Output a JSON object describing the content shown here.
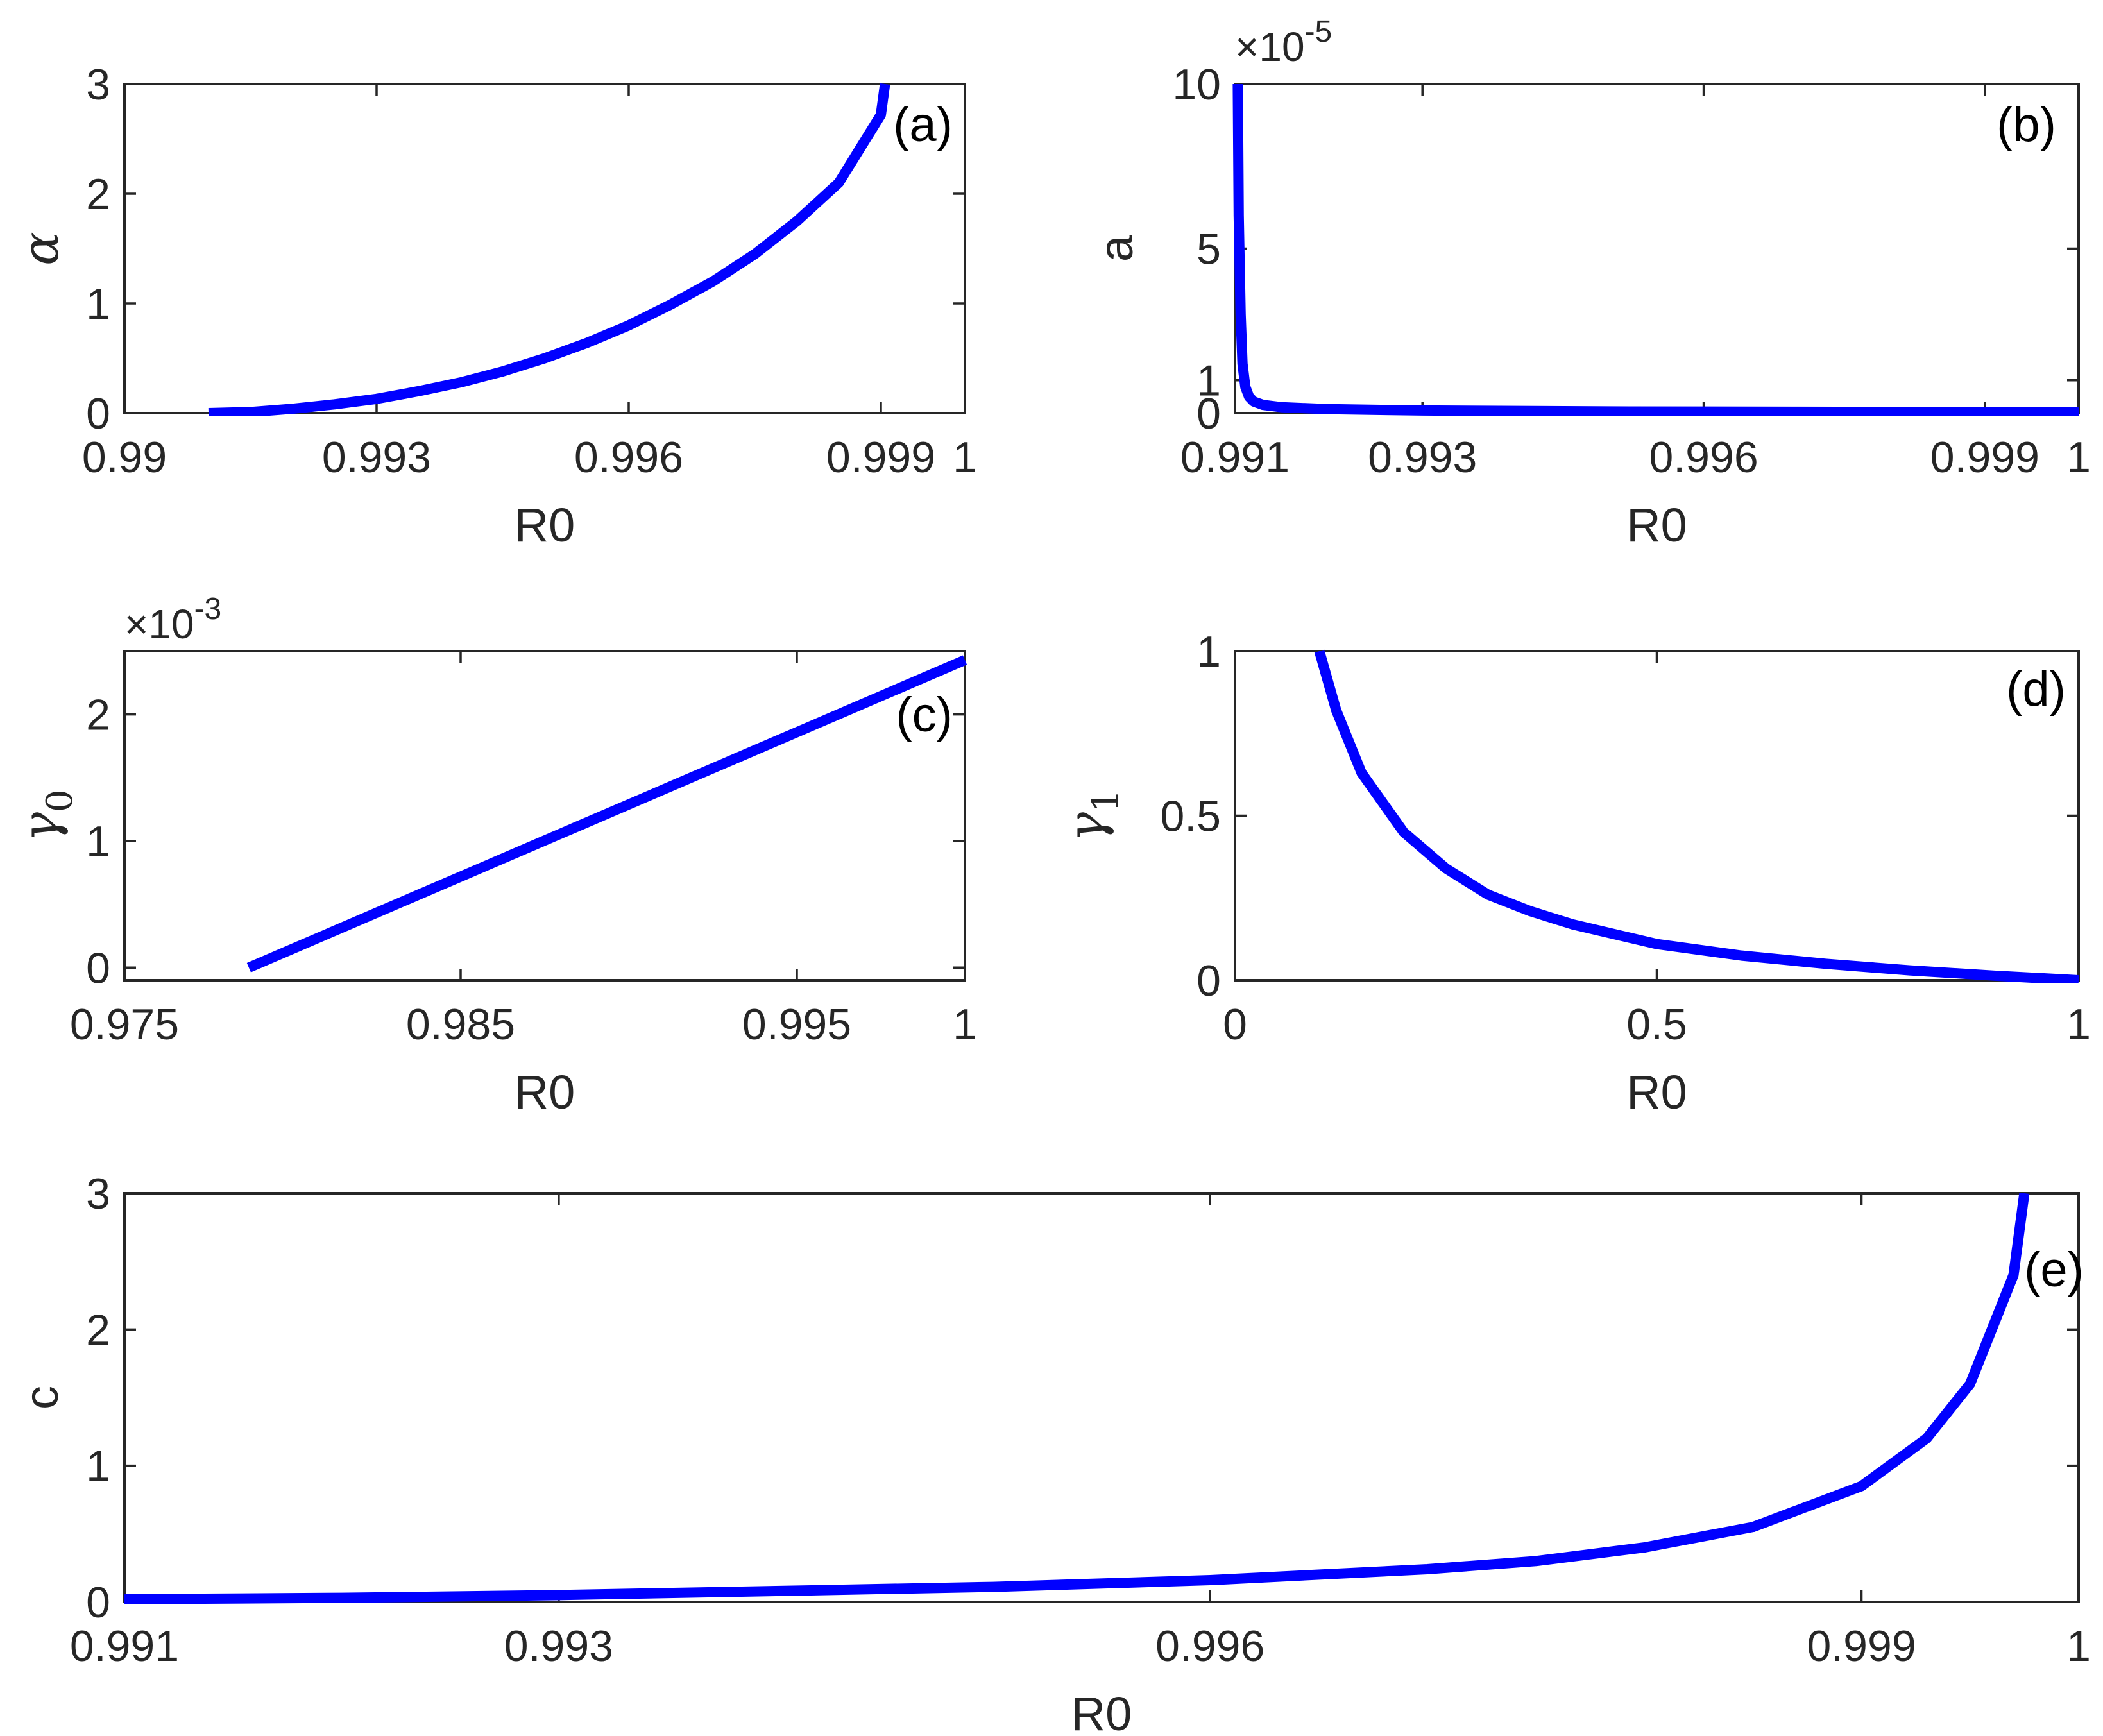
{
  "colors": {
    "series": "#0000ff",
    "axes": "#262626",
    "background": "#ffffff"
  },
  "chart_data": [
    {
      "id": "a",
      "type": "line",
      "tag": "(a)",
      "xlabel": "R0",
      "ylabel": "α",
      "ylabel_sub": "",
      "xlim": [
        0.99,
        1.0
      ],
      "ylim": [
        0,
        3
      ],
      "xticks": [
        0.99,
        0.993,
        0.996,
        0.999,
        1.0
      ],
      "xtick_labels": [
        "0.99",
        "0.993",
        "0.996",
        "0.999",
        "1"
      ],
      "yticks": [
        0,
        1,
        2,
        3
      ],
      "ytick_labels": [
        "0",
        "1",
        "2",
        "3"
      ],
      "exponent": "",
      "grid": false,
      "x": [
        0.991,
        0.9915,
        0.992,
        0.9925,
        0.993,
        0.9935,
        0.994,
        0.9945,
        0.995,
        0.9955,
        0.996,
        0.9965,
        0.997,
        0.9975,
        0.998,
        0.9985,
        0.999,
        0.99905
      ],
      "y": [
        0.0,
        0.01,
        0.04,
        0.08,
        0.13,
        0.2,
        0.28,
        0.38,
        0.5,
        0.64,
        0.8,
        0.99,
        1.2,
        1.45,
        1.75,
        2.1,
        2.72,
        3.0
      ]
    },
    {
      "id": "b",
      "type": "line",
      "tag": "(b)",
      "xlabel": "R0",
      "ylabel": "a",
      "ylabel_sub": "",
      "xlim": [
        0.991,
        1.0
      ],
      "ylim": [
        0,
        0.0001
      ],
      "xticks": [
        0.991,
        0.993,
        0.996,
        0.999,
        1.0
      ],
      "xtick_labels": [
        "0.991",
        "0.993",
        "0.996",
        "0.999",
        "1"
      ],
      "yticks": [
        0,
        1e-05,
        5e-05,
        0.0001
      ],
      "ytick_labels": [
        "0",
        "1",
        "5",
        "10"
      ],
      "exponent": "-5",
      "grid": false,
      "x": [
        0.99103,
        0.99104,
        0.99106,
        0.99108,
        0.99111,
        0.99115,
        0.9912,
        0.9913,
        0.9915,
        0.992,
        0.993,
        0.995,
        0.997,
        0.999,
        1.0
      ],
      "y": [
        0.0001,
        6e-05,
        3e-05,
        1.5e-05,
        8e-06,
        5e-06,
        3.5e-06,
        2.5e-06,
        1.8e-06,
        1.2e-06,
        8e-07,
        5e-07,
        4e-07,
        3e-07,
        3e-07
      ]
    },
    {
      "id": "c",
      "type": "line",
      "tag": "(c)",
      "xlabel": "R0",
      "ylabel": "γ",
      "ylabel_sub": "0",
      "xlim": [
        0.975,
        1.0
      ],
      "ylim": [
        -0.0001,
        0.0025
      ],
      "xticks": [
        0.975,
        0.985,
        0.995,
        1.0
      ],
      "xtick_labels": [
        "0.975",
        "0.985",
        "0.995",
        "1"
      ],
      "yticks": [
        0,
        0.001,
        0.002
      ],
      "ytick_labels": [
        "0",
        "1",
        "2"
      ],
      "exponent": "-3",
      "grid": false,
      "x": [
        0.9787,
        1.0
      ],
      "y": [
        0.0,
        0.00243
      ]
    },
    {
      "id": "d",
      "type": "line",
      "tag": "(d)",
      "xlabel": "R0",
      "ylabel": "γ",
      "ylabel_sub": "1",
      "xlim": [
        0,
        1
      ],
      "ylim": [
        0,
        1
      ],
      "xticks": [
        0,
        0.5,
        1
      ],
      "xtick_labels": [
        "0",
        "0.5",
        "1"
      ],
      "yticks": [
        0,
        0.5,
        1
      ],
      "ytick_labels": [
        "0",
        "0.5",
        "1"
      ],
      "exponent": "",
      "grid": false,
      "x": [
        0.1,
        0.12,
        0.15,
        0.2,
        0.25,
        0.3,
        0.35,
        0.4,
        0.5,
        0.6,
        0.7,
        0.8,
        0.9,
        1.0
      ],
      "y": [
        1.0,
        0.82,
        0.63,
        0.45,
        0.34,
        0.26,
        0.21,
        0.17,
        0.11,
        0.075,
        0.05,
        0.03,
        0.014,
        0.0
      ]
    },
    {
      "id": "e",
      "type": "line",
      "tag": "(e)",
      "xlabel": "R0",
      "ylabel": "c",
      "ylabel_sub": "",
      "xlim": [
        0.991,
        1.0
      ],
      "ylim": [
        0,
        3
      ],
      "xticks": [
        0.991,
        0.993,
        0.996,
        0.999,
        1.0
      ],
      "xtick_labels": [
        "0.991",
        "0.993",
        "0.996",
        "0.999",
        "1"
      ],
      "yticks": [
        0,
        1,
        2,
        3
      ],
      "ytick_labels": [
        "0",
        "1",
        "2",
        "3"
      ],
      "exponent": "",
      "grid": false,
      "x": [
        0.991,
        0.992,
        0.993,
        0.994,
        0.995,
        0.996,
        0.997,
        0.9975,
        0.998,
        0.9985,
        0.999,
        0.9993,
        0.9995,
        0.9997,
        0.99975
      ],
      "y": [
        0.02,
        0.03,
        0.05,
        0.08,
        0.11,
        0.16,
        0.24,
        0.3,
        0.4,
        0.55,
        0.85,
        1.2,
        1.6,
        2.4,
        3.0
      ]
    }
  ]
}
